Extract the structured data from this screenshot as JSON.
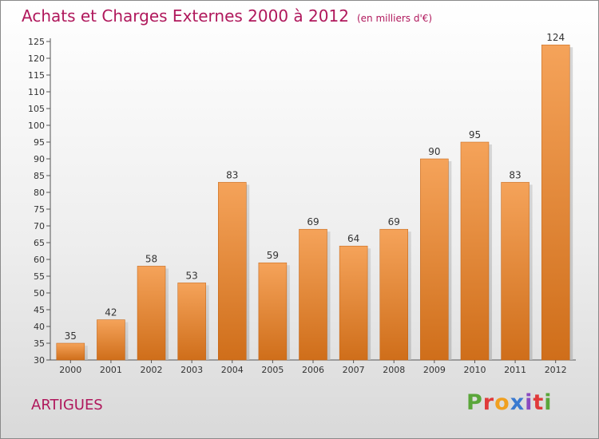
{
  "header": {
    "title": "Achats et Charges Externes 2000 à 2012",
    "subtitle": "(en milliers d'€)"
  },
  "footer": {
    "place": "ARTIGUES",
    "brand": "Proxiti",
    "brand_colors": [
      "#5aa63a",
      "#e03a3a",
      "#f0a020",
      "#3a7ad0",
      "#8a4ac0",
      "#e03a3a",
      "#5aa63a"
    ]
  },
  "chart_data": {
    "type": "bar",
    "title": "Achats et Charges Externes 2000 à 2012",
    "xlabel": "",
    "ylabel": "",
    "categories": [
      "2000",
      "2001",
      "2002",
      "2003",
      "2004",
      "2005",
      "2006",
      "2007",
      "2008",
      "2009",
      "2010",
      "2011",
      "2012"
    ],
    "values": [
      35,
      42,
      58,
      53,
      83,
      59,
      69,
      64,
      69,
      90,
      95,
      83,
      124
    ],
    "ylim": [
      30,
      125
    ],
    "ytick_step": 5,
    "grid": false,
    "legend": "none",
    "bar_color_top": "#f5a35a",
    "bar_color_bottom": "#cf6e1a"
  }
}
